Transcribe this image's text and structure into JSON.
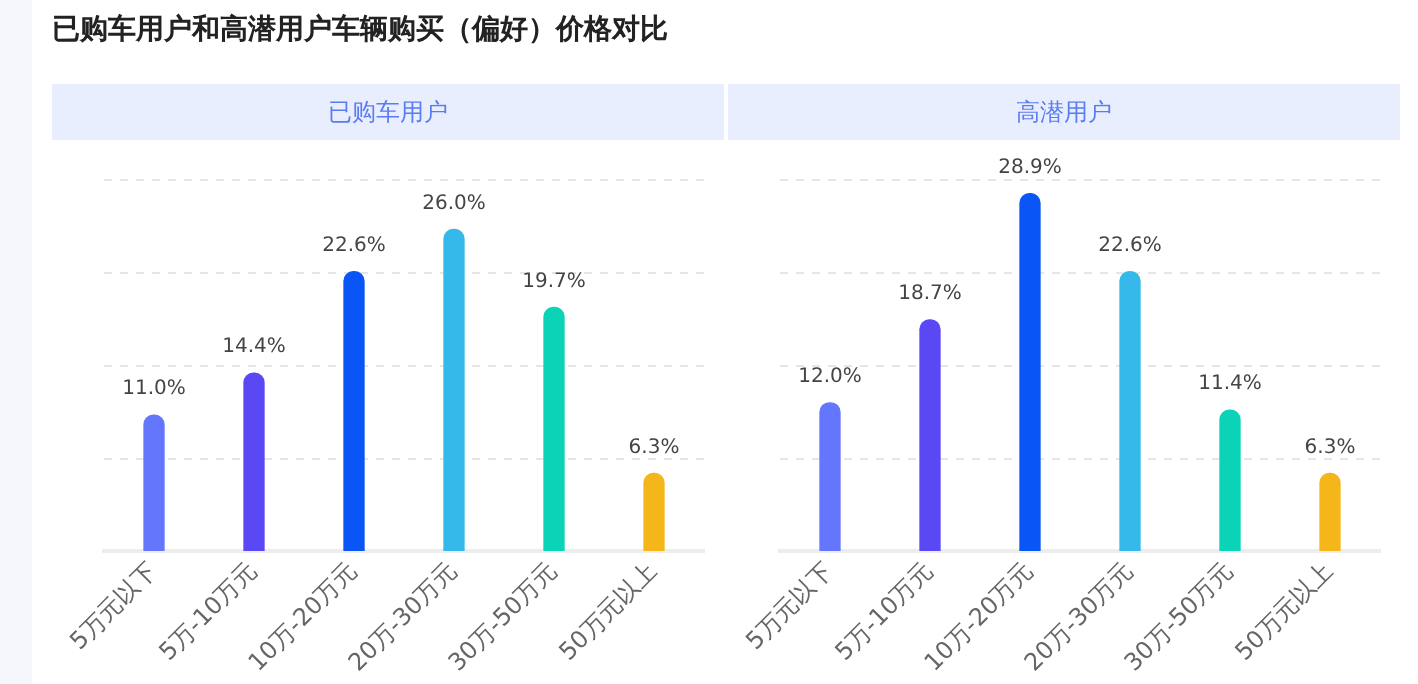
{
  "chart_data": [
    {
      "type": "bar",
      "title": "已购车用户和高潜用户车辆购买（偏好）价格对比",
      "subtitle": "已购车用户",
      "categories": [
        "5万元以下",
        "5万-10万元",
        "10万-20万元",
        "20万-30万元",
        "30万-50万元",
        "50万元以上"
      ],
      "values": [
        11.0,
        14.4,
        22.6,
        26.0,
        19.7,
        6.3
      ],
      "value_labels": [
        "11.0%",
        "14.4%",
        "22.6%",
        "26.0%",
        "19.7%",
        "6.3%"
      ],
      "colors": [
        "#6476fb",
        "#5b48f5",
        "#0a55f6",
        "#35b9ea",
        "#0ad3b8",
        "#f5b61a"
      ],
      "ylim": [
        0,
        30
      ],
      "yticks": [
        {
          "value": 0,
          "label": null
        },
        {
          "value": 7.5,
          "label": null
        },
        {
          "value": 15,
          "label": null
        },
        {
          "value": 22.5,
          "label": null
        },
        {
          "value": 30,
          "label": null
        }
      ],
      "grid": "y",
      "tick_labels": "x",
      "legend": false
    },
    {
      "type": "bar",
      "subtitle": "高潜用户",
      "categories": [
        "5万元以下",
        "5万-10万元",
        "10万-20万元",
        "20万-30万元",
        "30万-50万元",
        "50万元以上"
      ],
      "values": [
        12.0,
        18.7,
        28.9,
        22.6,
        11.4,
        6.3
      ],
      "value_labels": [
        "12.0%",
        "18.7%",
        "28.9%",
        "22.6%",
        "11.4%",
        "6.3%"
      ],
      "colors": [
        "#6476fb",
        "#5b48f5",
        "#0a55f6",
        "#35b9ea",
        "#0ad3b8",
        "#f5b61a"
      ],
      "ylim": [
        0,
        30
      ],
      "yticks": [
        {
          "value": 0,
          "label": null
        },
        {
          "value": 7.5,
          "label": null
        },
        {
          "value": 15,
          "label": null
        },
        {
          "value": 22.5,
          "label": null
        },
        {
          "value": 30,
          "label": null
        }
      ],
      "grid": "y",
      "tick_labels": "x",
      "legend": false
    }
  ]
}
